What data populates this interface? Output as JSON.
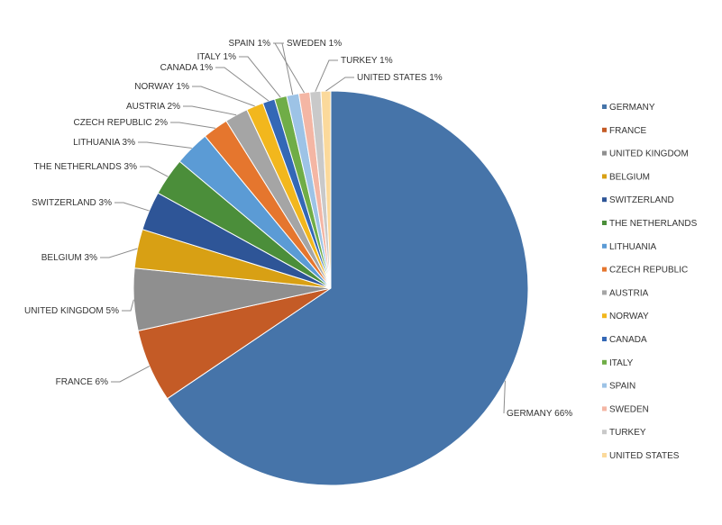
{
  "chart_data": {
    "type": "pie",
    "title": "",
    "categories": [
      "GERMANY",
      "FRANCE",
      "UNITED KINGDOM",
      "BELGIUM",
      "SWITZERLAND",
      "THE NETHERLANDS",
      "LITHUANIA",
      "CZECH REPUBLIC",
      "AUSTRIA",
      "NORWAY",
      "CANADA",
      "ITALY",
      "SPAIN",
      "SWEDEN",
      "TURKEY",
      "UNITED STATES"
    ],
    "values": [
      65.6,
      6.0,
      5.1,
      3.2,
      3.2,
      3.1,
      2.9,
      2.1,
      1.9,
      1.4,
      1.0,
      1.0,
      1.0,
      0.9,
      0.9,
      0.8
    ],
    "data_labels": [
      "GERMANY 66%",
      "FRANCE 6%",
      "UNITED KINGDOM 5%",
      "BELGIUM 3%",
      "SWITZERLAND 3%",
      "THE NETHERLANDS 3%",
      "LITHUANIA  3%",
      "CZECH REPUBLIC 2%",
      "AUSTRIA 2%",
      "NORWAY 1%",
      "CANADA 1%",
      "ITALY 1%",
      "SPAIN 1%",
      "SWEDEN 1%",
      "TURKEY 1%",
      "UNITED STATES 1%"
    ],
    "colors": [
      "#4674a9",
      "#c45b26",
      "#8f8f8f",
      "#d8a014",
      "#2e5597",
      "#4b8e3a",
      "#5b9bd5",
      "#e5762e",
      "#a5a5a5",
      "#f2b71d",
      "#3468b6",
      "#70ad47",
      "#9dc3e6",
      "#f4b6a4",
      "#c9c9c9",
      "#fbd99b"
    ],
    "legend": {
      "position": "right",
      "entries": [
        "GERMANY",
        "FRANCE",
        "UNITED KINGDOM",
        "BELGIUM",
        "SWITZERLAND",
        "THE NETHERLANDS",
        "LITHUANIA",
        "CZECH REPUBLIC",
        "AUSTRIA",
        "NORWAY",
        "CANADA",
        "ITALY",
        "SPAIN",
        "SWEDEN",
        "TURKEY",
        "UNITED STATES"
      ]
    },
    "start_angle": "12 o'clock, clockwise"
  }
}
